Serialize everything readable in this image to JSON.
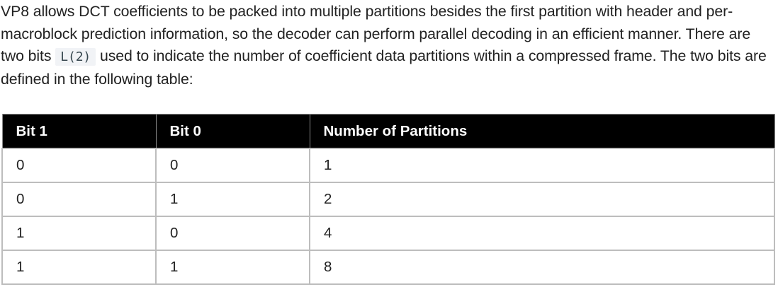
{
  "paragraph": {
    "text_before_code": "VP8 allows DCT coefficients to be packed into multiple partitions besides the first partition with header and per-macroblock prediction information, so the decoder can perform parallel decoding in an efficient manner. There are two bits ",
    "code": "L(2)",
    "text_after_code": " used to indicate the number of coefficient data partitions within a compressed frame. The two bits are defined in the following table:"
  },
  "table": {
    "headers": [
      "Bit 1",
      "Bit 0",
      "Number of Partitions"
    ],
    "rows": [
      [
        "0",
        "0",
        "1"
      ],
      [
        "0",
        "1",
        "2"
      ],
      [
        "1",
        "0",
        "4"
      ],
      [
        "1",
        "1",
        "8"
      ]
    ]
  }
}
